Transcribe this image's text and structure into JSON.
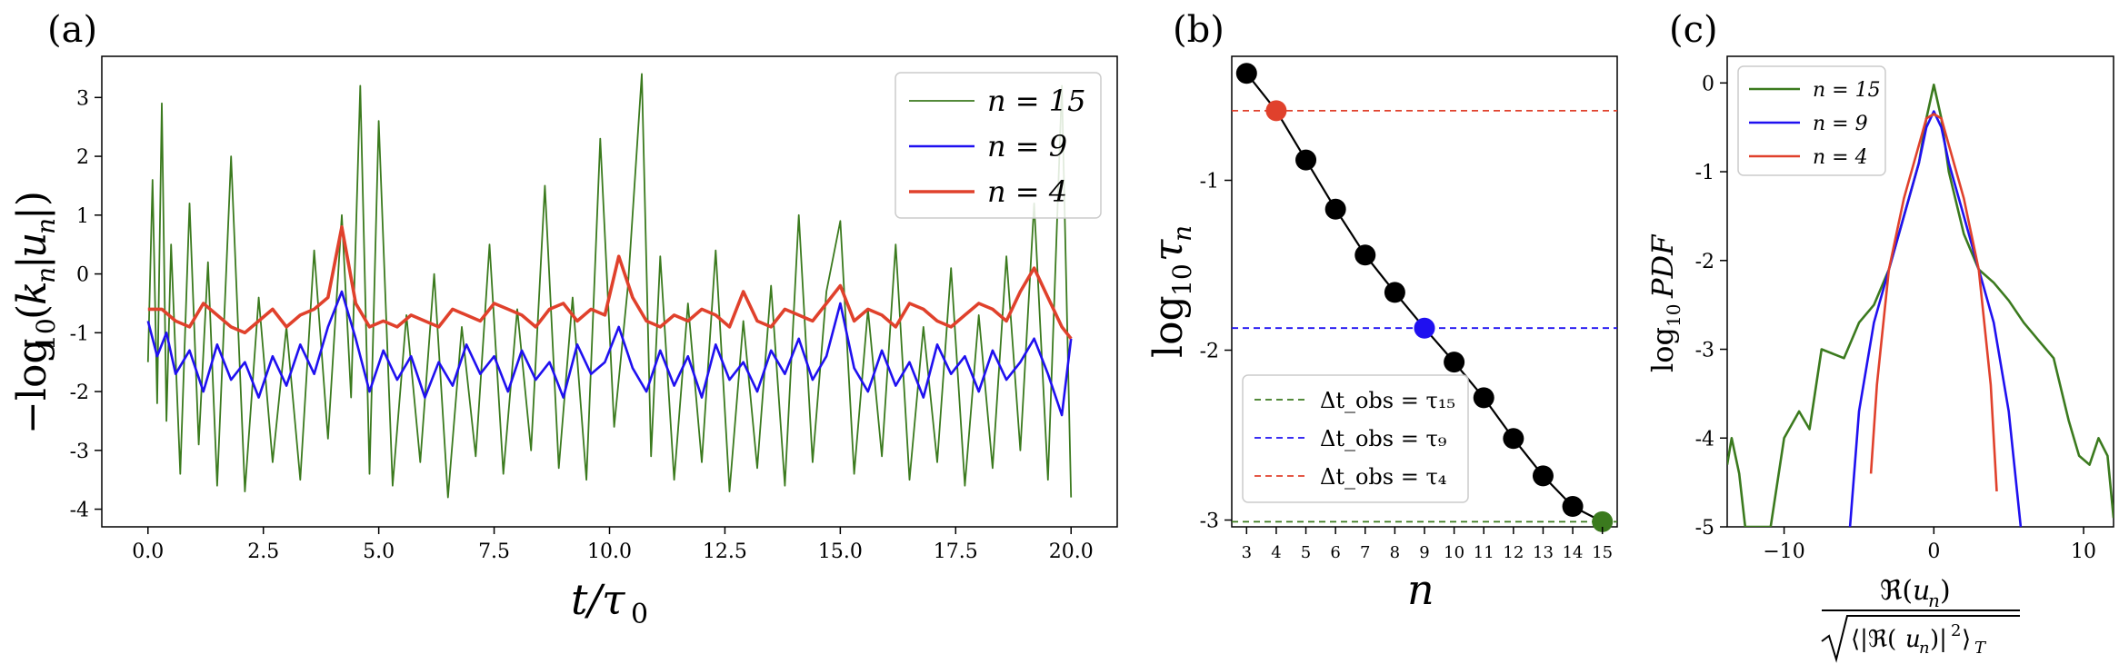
{
  "chart_data": [
    {
      "panel": "(a)",
      "type": "line",
      "xlabel": "t/τ₀",
      "ylabel": "−log₁₀(kₙ|uₙ|)",
      "xlim": [
        -1,
        21
      ],
      "ylim": [
        -4.3,
        3.7
      ],
      "xticks": [
        "0.0",
        "2.5",
        "5.0",
        "7.5",
        "10.0",
        "12.5",
        "15.0",
        "17.5",
        "20.0"
      ],
      "yticks": [
        "-4",
        "-3",
        "-2",
        "-1",
        "0",
        "1",
        "2",
        "3"
      ],
      "legend_position": "top-right",
      "series": [
        {
          "name": "n = 15",
          "color": "#3b7a1e",
          "x": [
            0,
            0.1,
            0.2,
            0.3,
            0.4,
            0.5,
            0.7,
            0.9,
            1.1,
            1.3,
            1.5,
            1.8,
            2.1,
            2.4,
            2.7,
            3.0,
            3.3,
            3.6,
            3.9,
            4.2,
            4.4,
            4.6,
            4.8,
            5.0,
            5.3,
            5.6,
            5.9,
            6.2,
            6.5,
            6.8,
            7.1,
            7.4,
            7.7,
            8.0,
            8.3,
            8.6,
            8.9,
            9.2,
            9.5,
            9.8,
            10.1,
            10.4,
            10.7,
            10.9,
            11.1,
            11.4,
            11.7,
            12.0,
            12.3,
            12.6,
            12.9,
            13.2,
            13.5,
            13.8,
            14.1,
            14.4,
            14.7,
            15.0,
            15.3,
            15.6,
            15.9,
            16.2,
            16.5,
            16.8,
            17.1,
            17.4,
            17.7,
            18.0,
            18.3,
            18.6,
            18.9,
            19.2,
            19.5,
            19.8,
            20.0
          ],
          "y": [
            -1.5,
            1.6,
            -2.2,
            2.9,
            -2.5,
            0.5,
            -3.4,
            1.2,
            -2.9,
            0.2,
            -3.6,
            2.0,
            -3.7,
            -0.4,
            -3.2,
            -0.9,
            -3.5,
            0.4,
            -2.8,
            1.0,
            -2.1,
            3.2,
            -3.4,
            2.6,
            -3.6,
            -0.7,
            -3.2,
            0.0,
            -3.8,
            -0.9,
            -3.1,
            0.5,
            -3.4,
            -0.6,
            -3.0,
            1.5,
            -3.3,
            -0.4,
            -3.5,
            2.3,
            -2.6,
            -0.2,
            3.4,
            -3.1,
            0.3,
            -3.5,
            -0.5,
            -3.2,
            0.4,
            -3.7,
            -0.8,
            -3.3,
            -0.2,
            -3.6,
            1.0,
            -3.2,
            -0.3,
            0.9,
            -3.4,
            -0.6,
            -3.1,
            0.5,
            -3.5,
            -0.9,
            -3.2,
            0.1,
            -3.6,
            -0.7,
            -3.3,
            0.3,
            -3.0,
            1.2,
            -3.5,
            3.2,
            -3.8
          ]
        },
        {
          "name": "n = 9",
          "color": "#1f10f0",
          "x": [
            0,
            0.2,
            0.4,
            0.6,
            0.9,
            1.2,
            1.5,
            1.8,
            2.1,
            2.4,
            2.7,
            3.0,
            3.3,
            3.6,
            3.9,
            4.2,
            4.5,
            4.8,
            5.1,
            5.4,
            5.7,
            6.0,
            6.3,
            6.6,
            6.9,
            7.2,
            7.5,
            7.8,
            8.1,
            8.4,
            8.7,
            9.0,
            9.3,
            9.6,
            9.9,
            10.2,
            10.5,
            10.8,
            11.1,
            11.4,
            11.7,
            12.0,
            12.3,
            12.6,
            12.9,
            13.2,
            13.5,
            13.8,
            14.1,
            14.4,
            14.7,
            15.0,
            15.3,
            15.6,
            15.9,
            16.2,
            16.5,
            16.8,
            17.1,
            17.4,
            17.7,
            18.0,
            18.3,
            18.6,
            18.9,
            19.2,
            19.5,
            19.8,
            20.0
          ],
          "y": [
            -0.8,
            -1.4,
            -1.0,
            -1.7,
            -1.3,
            -2.0,
            -1.2,
            -1.8,
            -1.5,
            -2.1,
            -1.4,
            -1.9,
            -1.2,
            -1.7,
            -0.9,
            -0.3,
            -1.1,
            -2.0,
            -1.3,
            -1.8,
            -1.4,
            -2.1,
            -1.5,
            -1.9,
            -1.2,
            -1.7,
            -1.4,
            -2.0,
            -1.3,
            -1.8,
            -1.5,
            -2.1,
            -1.2,
            -1.7,
            -1.5,
            -0.9,
            -1.6,
            -2.0,
            -1.3,
            -1.9,
            -1.4,
            -2.1,
            -1.2,
            -1.8,
            -1.5,
            -2.0,
            -1.3,
            -1.7,
            -1.1,
            -1.8,
            -1.4,
            -0.5,
            -1.6,
            -2.0,
            -1.3,
            -1.9,
            -1.5,
            -2.1,
            -1.2,
            -1.7,
            -1.4,
            -2.0,
            -1.3,
            -1.8,
            -1.5,
            -1.1,
            -1.7,
            -2.4,
            -1.1
          ]
        },
        {
          "name": "n = 4",
          "color": "#e0412c",
          "x": [
            0,
            0.3,
            0.6,
            0.9,
            1.2,
            1.5,
            1.8,
            2.1,
            2.4,
            2.7,
            3.0,
            3.3,
            3.6,
            3.9,
            4.2,
            4.5,
            4.8,
            5.1,
            5.4,
            5.7,
            6.0,
            6.3,
            6.6,
            6.9,
            7.2,
            7.5,
            7.8,
            8.1,
            8.4,
            8.7,
            9.0,
            9.3,
            9.6,
            9.9,
            10.2,
            10.5,
            10.8,
            11.1,
            11.4,
            11.7,
            12.0,
            12.3,
            12.6,
            12.9,
            13.2,
            13.5,
            13.8,
            14.1,
            14.4,
            14.7,
            15.0,
            15.3,
            15.6,
            15.9,
            16.2,
            16.5,
            16.8,
            17.1,
            17.4,
            17.7,
            18.0,
            18.3,
            18.6,
            18.9,
            19.2,
            19.5,
            19.8,
            20.0
          ],
          "y": [
            -0.6,
            -0.6,
            -0.8,
            -0.9,
            -0.5,
            -0.7,
            -0.9,
            -1.0,
            -0.8,
            -0.6,
            -0.9,
            -0.7,
            -0.6,
            -0.4,
            0.8,
            -0.5,
            -0.9,
            -0.8,
            -0.9,
            -0.7,
            -0.8,
            -0.9,
            -0.6,
            -0.7,
            -0.8,
            -0.5,
            -0.6,
            -0.7,
            -0.9,
            -0.6,
            -0.5,
            -0.8,
            -0.6,
            -0.7,
            0.3,
            -0.4,
            -0.8,
            -0.9,
            -0.7,
            -0.8,
            -0.6,
            -0.7,
            -0.9,
            -0.3,
            -0.8,
            -0.9,
            -0.6,
            -0.7,
            -0.8,
            -0.5,
            -0.2,
            -0.8,
            -0.6,
            -0.7,
            -0.9,
            -0.5,
            -0.6,
            -0.8,
            -0.9,
            -0.7,
            -0.5,
            -0.6,
            -0.8,
            -0.3,
            0.1,
            -0.4,
            -0.9,
            -1.1
          ]
        }
      ]
    },
    {
      "panel": "(b)",
      "type": "scatter",
      "xlabel": "n",
      "ylabel": "log₁₀ τₙ",
      "xlim": [
        2.5,
        15.5
      ],
      "ylim": [
        -3.04,
        -0.27
      ],
      "xticks": [
        "3",
        "4",
        "5",
        "6",
        "7",
        "8",
        "9",
        "10",
        "11",
        "12",
        "13",
        "14",
        "15"
      ],
      "yticks": [
        "-1",
        "-2",
        "-3"
      ],
      "legend_position": "bottom-left",
      "points": {
        "x": [
          3,
          4,
          5,
          6,
          7,
          8,
          9,
          10,
          11,
          12,
          13,
          14,
          15
        ],
        "y": [
          -0.37,
          -0.59,
          -0.88,
          -1.17,
          -1.44,
          -1.66,
          -1.87,
          -2.07,
          -2.28,
          -2.52,
          -2.74,
          -2.92,
          -3.01
        ],
        "colors": [
          "#000000",
          "#e0412c",
          "#000000",
          "#000000",
          "#000000",
          "#000000",
          "#1f10f0",
          "#000000",
          "#000000",
          "#000000",
          "#000000",
          "#000000",
          "#3b7a1e"
        ]
      },
      "hlines": [
        {
          "name": "Δt_obs = τ₁₅",
          "y": -3.01,
          "color": "#3b7a1e"
        },
        {
          "name": "Δt_obs = τ₉",
          "y": -1.87,
          "color": "#1f10f0"
        },
        {
          "name": "Δt_obs = τ₄",
          "y": -0.59,
          "color": "#e0412c"
        }
      ]
    },
    {
      "panel": "(c)",
      "type": "line",
      "xlabel": "ℜ(uₙ) / √(⟨|ℜ(uₙ)|²⟩_T)",
      "ylabel": "log₁₀ PDF",
      "xlim": [
        -13.8,
        12
      ],
      "ylim": [
        -5,
        0.3
      ],
      "xticks": [
        "−10",
        "0",
        "10"
      ],
      "yticks": [
        "0",
        "-1",
        "-2",
        "-3",
        "-4",
        "-5"
      ],
      "legend_position": "top-left",
      "series": [
        {
          "name": "n = 15",
          "color": "#3b7a1e",
          "x": [
            -13.8,
            -13.5,
            -13.0,
            -12.6,
            -10.9,
            -10.0,
            -9.0,
            -8.3,
            -7.5,
            -6.0,
            -5.0,
            -4.0,
            -3.0,
            -2.0,
            -1.0,
            -0.5,
            0,
            0.5,
            1.0,
            2.0,
            3.0,
            4.0,
            5.0,
            6.0,
            7.0,
            8.0,
            9.0,
            9.7,
            10.4,
            11.0,
            11.6,
            12.0
          ],
          "y": [
            -4.3,
            -4.0,
            -4.4,
            -5.0,
            -5.0,
            -4.0,
            -3.7,
            -3.9,
            -3.0,
            -3.1,
            -2.7,
            -2.5,
            -2.1,
            -1.5,
            -0.9,
            -0.4,
            -0.02,
            -0.4,
            -1.0,
            -1.7,
            -2.1,
            -2.25,
            -2.45,
            -2.7,
            -2.9,
            -3.1,
            -3.8,
            -4.2,
            -4.3,
            -4.0,
            -4.2,
            -4.9
          ]
        },
        {
          "name": "n = 9",
          "color": "#1f10f0",
          "x": [
            -5.6,
            -5.0,
            -4.0,
            -3.0,
            -2.0,
            -1.0,
            -0.5,
            0,
            0.5,
            1.0,
            2.0,
            3.0,
            4.0,
            5.0,
            5.8
          ],
          "y": [
            -5.0,
            -3.7,
            -2.7,
            -2.1,
            -1.5,
            -0.9,
            -0.5,
            -0.32,
            -0.5,
            -0.9,
            -1.5,
            -2.1,
            -2.7,
            -3.7,
            -5.0
          ]
        },
        {
          "name": "n = 4",
          "color": "#e0412c",
          "x": [
            -4.2,
            -3.8,
            -3.0,
            -2.0,
            -1.0,
            -0.5,
            0,
            0.5,
            1.0,
            2.0,
            3.0,
            3.8,
            4.2
          ],
          "y": [
            -4.4,
            -3.4,
            -2.1,
            -1.3,
            -0.7,
            -0.4,
            -0.35,
            -0.4,
            -0.7,
            -1.3,
            -2.1,
            -3.4,
            -4.6
          ]
        }
      ]
    }
  ]
}
